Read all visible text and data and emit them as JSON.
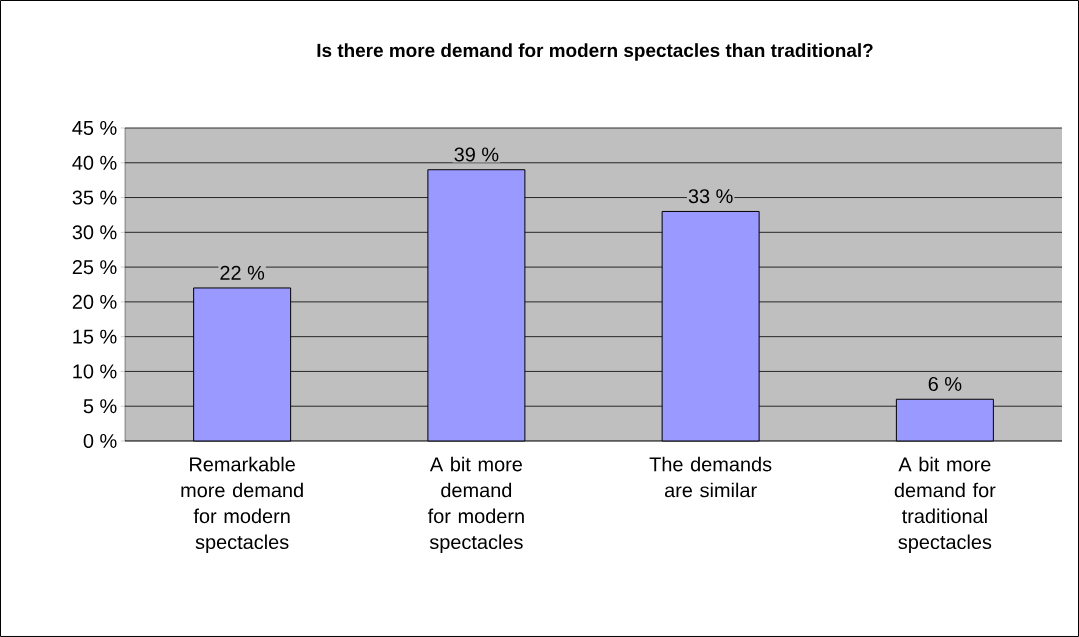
{
  "chart_data": {
    "type": "bar",
    "title": "Is there more demand for modern spectacles than traditional?",
    "categories": [
      "Remarkable more demand for modern spectacles",
      "A bit more demand for modern spectacles",
      "The demands are similar",
      "A bit more demand for traditional spectacles"
    ],
    "values": [
      22,
      39,
      33,
      6
    ],
    "value_labels": [
      "22 %",
      "39 %",
      "33 %",
      "6 %"
    ],
    "color": "#9999ff",
    "ylim": [
      0,
      45
    ],
    "yticks": [
      {
        "value": 0,
        "label": "0 %"
      },
      {
        "value": 5,
        "label": "5 %"
      },
      {
        "value": 10,
        "label": "10 %"
      },
      {
        "value": 15,
        "label": "15 %"
      },
      {
        "value": 20,
        "label": "20 %"
      },
      {
        "value": 25,
        "label": "25 %"
      },
      {
        "value": 30,
        "label": "30 %"
      },
      {
        "value": 35,
        "label": "35 %"
      },
      {
        "value": 40,
        "label": "40 %"
      },
      {
        "value": 45,
        "label": "45 %"
      }
    ],
    "grid": "y"
  }
}
